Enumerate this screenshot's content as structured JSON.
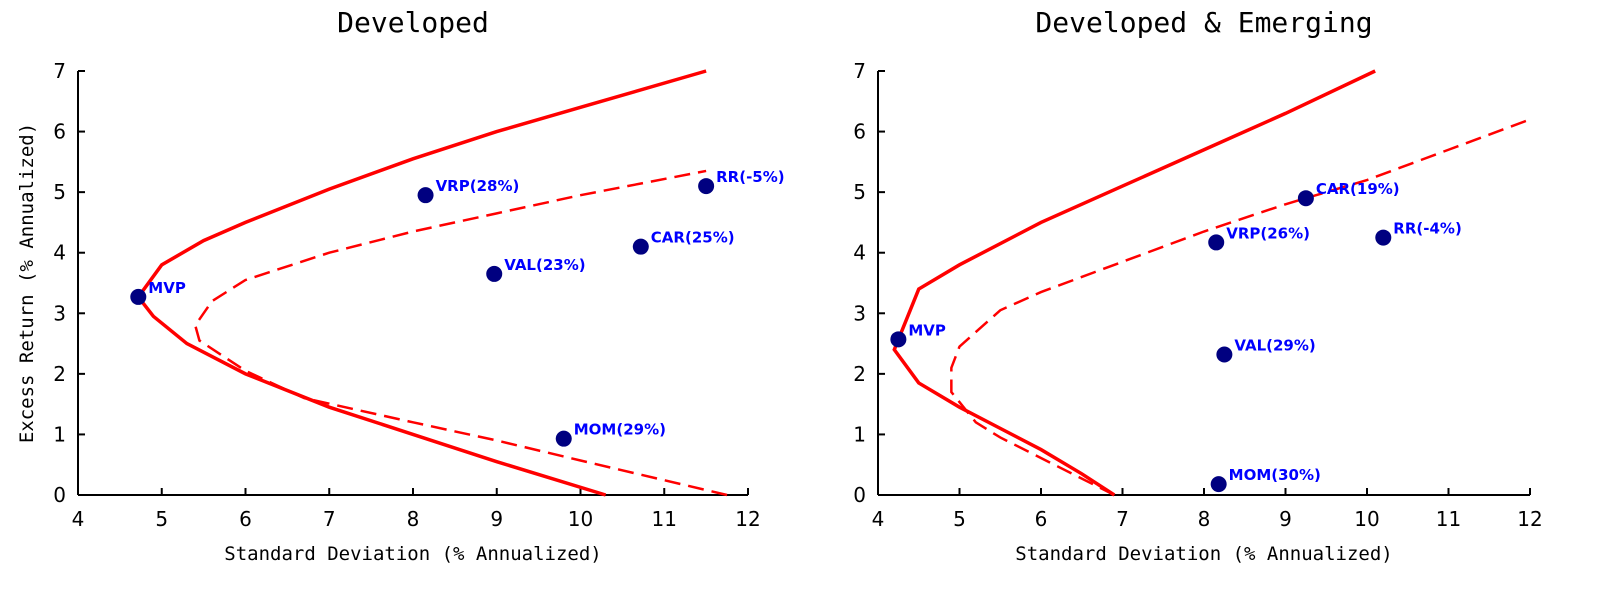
{
  "chart_data": [
    {
      "type": "scatter",
      "title": "Developed",
      "xlabel": "Standard Deviation (% Annualized)",
      "ylabel": "Excess Return (% Annualized)",
      "xlim": [
        4,
        12
      ],
      "ylim": [
        0,
        7
      ],
      "xticks": [
        4,
        5,
        6,
        7,
        8,
        9,
        10,
        11,
        12
      ],
      "yticks": [
        0,
        1,
        2,
        3,
        4,
        5,
        6,
        7
      ],
      "points": {
        "labels": [
          "MVP",
          "VRP(28%)",
          "RR(-5%)",
          "CAR(25%)",
          "VAL(23%)",
          "MOM(29%)"
        ],
        "x": [
          4.72,
          8.15,
          11.5,
          10.72,
          8.97,
          9.8
        ],
        "y": [
          3.27,
          4.95,
          5.1,
          4.1,
          3.65,
          0.93
        ],
        "color": "#000080",
        "label_color": "#0000ff"
      },
      "curves": [
        {
          "style": "solid",
          "color": "#ff0000",
          "x": [
            10.3,
            9,
            8,
            7,
            6,
            5.3,
            4.9,
            4.72,
            5,
            5.5,
            6,
            7,
            8,
            9,
            10,
            11.5
          ],
          "y": [
            0,
            0.55,
            1.0,
            1.45,
            2.0,
            2.5,
            2.95,
            3.27,
            3.8,
            4.2,
            4.5,
            5.05,
            5.55,
            6.0,
            6.4,
            7.0
          ]
        },
        {
          "style": "dashed",
          "color": "#ff0000",
          "x": [
            11.75,
            10,
            9,
            8,
            6.7,
            6,
            5.45,
            5.4,
            5.6,
            6,
            7,
            8,
            9,
            10,
            11.5
          ],
          "y": [
            0,
            0.57,
            0.9,
            1.2,
            1.6,
            2.05,
            2.55,
            2.8,
            3.2,
            3.55,
            4.0,
            4.35,
            4.65,
            4.95,
            5.35
          ]
        }
      ]
    },
    {
      "type": "scatter",
      "title": "Developed & Emerging",
      "xlabel": "Standard Deviation (% Annualized)",
      "xlim": [
        4,
        12
      ],
      "ylim": [
        0,
        7
      ],
      "xticks": [
        4,
        5,
        6,
        7,
        8,
        9,
        10,
        11,
        12
      ],
      "yticks": [
        0,
        1,
        2,
        3,
        4,
        5,
        6,
        7
      ],
      "points": {
        "labels": [
          "MVP",
          "CAR(19%)",
          "VRP(26%)",
          "RR(-4%)",
          "VAL(29%)",
          "MOM(30%)"
        ],
        "x": [
          4.25,
          9.25,
          8.15,
          10.2,
          8.25,
          8.18
        ],
        "y": [
          2.57,
          4.9,
          4.17,
          4.25,
          2.32,
          0.18
        ],
        "color": "#000080",
        "label_color": "#0000ff"
      },
      "curves": [
        {
          "style": "solid",
          "color": "#ff0000",
          "x": [
            6.9,
            6.5,
            6,
            5.5,
            5,
            4.5,
            4.2,
            4.5,
            5,
            6,
            7,
            8,
            9,
            10.1
          ],
          "y": [
            0,
            0.35,
            0.75,
            1.1,
            1.45,
            1.85,
            2.4,
            3.4,
            3.8,
            4.5,
            5.1,
            5.7,
            6.3,
            7.0
          ]
        },
        {
          "style": "dashed",
          "color": "#ff0000",
          "x": [
            6.9,
            5.5,
            5.2,
            4.9,
            4.9,
            5.0,
            5.5,
            6,
            7,
            8,
            9,
            10,
            11,
            12
          ],
          "y": [
            0,
            0.95,
            1.2,
            1.7,
            2.1,
            2.45,
            3.05,
            3.35,
            3.85,
            4.35,
            4.8,
            5.2,
            5.7,
            6.2
          ]
        }
      ]
    }
  ]
}
